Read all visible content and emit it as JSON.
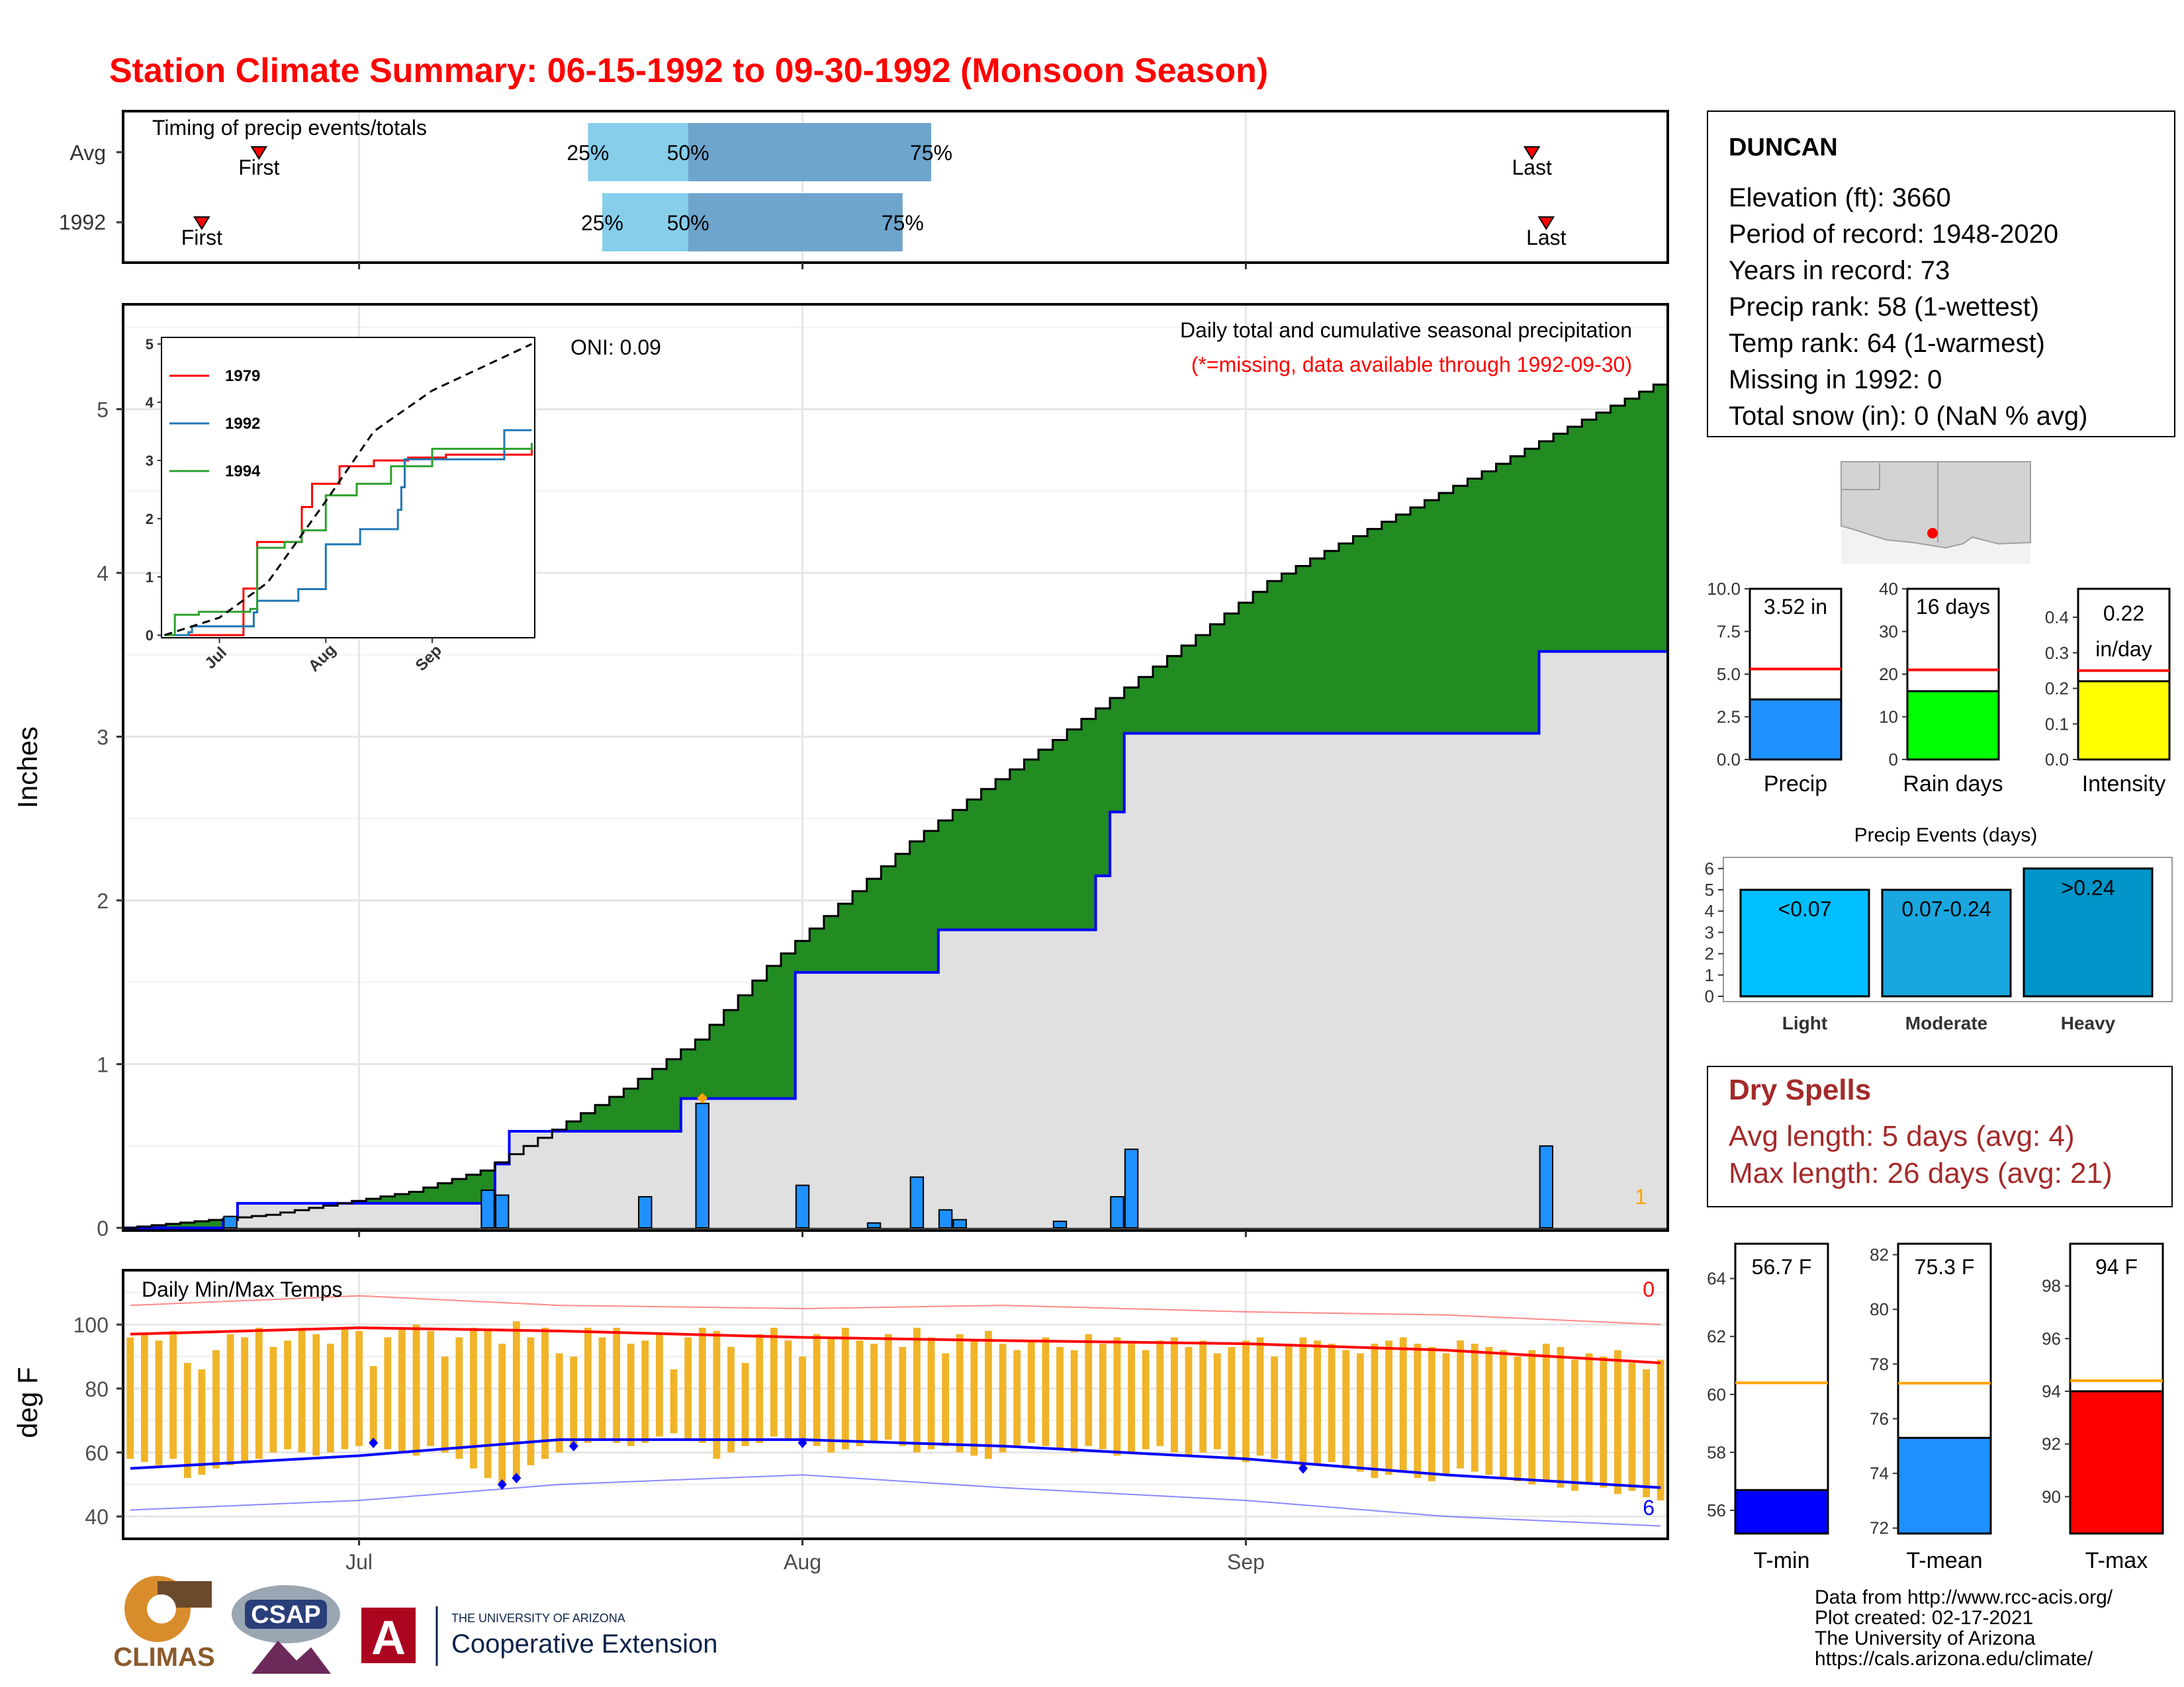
{
  "title": "Station Climate Summary: 06-15-1992 to 09-30-1992 (Monsoon Season)",
  "colors": {
    "title": "#ff0000",
    "q_light": "#87ceeb",
    "q_dark": "#6ea5cd",
    "cum_avg_fill": "#8b5a00",
    "cum_year_fill": "#e0e0e0",
    "cum_year_line": "#0000ff",
    "daily_bar": "#1e90ff",
    "temp_bar": "#f0b428",
    "tmax_avg": "#ff0000",
    "tmin_avg": "#0000ff",
    "dry_spell_text": "#a52a2a",
    "precip_bar": "#1e90ff",
    "raindays_bar": "#00ff00",
    "intensity_bar": "#ffff00",
    "tmin_bar": "#0000ff",
    "tmean_bar": "#1e90ff",
    "tmax_bar": "#ff0000",
    "avg_line_red": "#ff0000",
    "avg_line_orange": "#ffa500"
  },
  "timing": {
    "label": "Timing of precip events/totals",
    "rows": [
      {
        "label": "Avg",
        "first": "06-24",
        "last": "09-21",
        "q25": "07-17",
        "q50": "07-24",
        "q75": "08-10"
      },
      {
        "label": "1992",
        "first": "06-20",
        "last": "09-22",
        "q25": "07-18",
        "q50": "07-24",
        "q75": "08-08"
      }
    ],
    "first_text": "First",
    "last_text": "Last",
    "q25_text": "25%",
    "q50_text": "50%",
    "q75_text": "75%"
  },
  "precip_panel": {
    "ylabel": "Inches",
    "yticks": [
      "0",
      "1",
      "2",
      "3",
      "4",
      "5"
    ],
    "xticks": [
      "Jul",
      "Aug",
      "Sep"
    ],
    "oni": "ONI: 0.09",
    "annot1": "Daily total and cumulative seasonal precipitation",
    "annot2": "(*=missing, data available through 1992-09-30)",
    "corner_count": "1"
  },
  "inset": {
    "yticks": [
      "0",
      "1",
      "2",
      "3",
      "4",
      "5"
    ],
    "xticks": [
      "Jul",
      "Aug",
      "Sep"
    ],
    "legend": [
      {
        "name": "1979",
        "color": "#ff0000"
      },
      {
        "name": "1992",
        "color": "#1f77b4"
      },
      {
        "name": "1994",
        "color": "#2ca02c"
      }
    ]
  },
  "temp_panel": {
    "ylabel": "deg F",
    "label": "Daily Min/Max Temps",
    "yticks": [
      "40",
      "60",
      "80",
      "100"
    ],
    "xticks": [
      "Jul",
      "Aug",
      "Sep"
    ],
    "count_red": "0",
    "count_blue": "6"
  },
  "station": {
    "name": "DUNCAN",
    "lines": [
      "Elevation (ft): 3660",
      "Period of record: 1948-2020",
      "Years in record: 73",
      "Precip rank: 58 (1-wettest)",
      "Temp rank: 64 (1-warmest)",
      "Missing in 1992: 0",
      "Total snow (in): 0 (NaN % avg)"
    ]
  },
  "mini_bars": {
    "precip": {
      "label": "Precip",
      "value_text": "3.52 in",
      "value": 3.52,
      "avg": 5.3,
      "ticks": [
        "0.0",
        "2.5",
        "5.0",
        "7.5",
        "10.0"
      ],
      "max": 10
    },
    "raindays": {
      "label": "Rain days",
      "value_text": "16 days",
      "value": 16,
      "avg": 21,
      "ticks": [
        "0",
        "10",
        "20",
        "30",
        "40"
      ],
      "max": 40
    },
    "intensity": {
      "label": "Intensity",
      "value_text1": "0.22",
      "value_text2": "in/day",
      "value": 0.22,
      "avg": 0.25,
      "ticks": [
        "0.0",
        "0.1",
        "0.2",
        "0.3",
        "0.4"
      ],
      "max": 0.48
    }
  },
  "events": {
    "title": "Precip Events (days)",
    "yticks": [
      "0",
      "1",
      "2",
      "3",
      "4",
      "5",
      "6"
    ],
    "bars": [
      {
        "category": "Light",
        "label": "<0.07",
        "value": 5
      },
      {
        "category": "Moderate",
        "label": "0.07-0.24",
        "value": 5
      },
      {
        "category": "Heavy",
        "label": ">0.24",
        "value": 6
      }
    ]
  },
  "dry_spells": {
    "title": "Dry Spells",
    "line1": "Avg length: 5 days (avg: 4)",
    "line2": "Max length: 26 days (avg: 21)"
  },
  "temp_bars": {
    "tmin": {
      "label": "T-min",
      "value_text": "56.7 F",
      "value": 56.7,
      "avg": 60.4,
      "ticks": [
        "56",
        "58",
        "60",
        "62",
        "64"
      ],
      "min": 55.2,
      "max": 65.2
    },
    "tmean": {
      "label": "T-mean",
      "value_text": "75.3 F",
      "value": 75.3,
      "avg": 77.3,
      "ticks": [
        "72",
        "74",
        "76",
        "78",
        "80",
        "82"
      ],
      "min": 71.8,
      "max": 82.4
    },
    "tmax": {
      "label": "T-max",
      "value_text": "94 F",
      "value": 94.0,
      "avg": 94.4,
      "ticks": [
        "90",
        "92",
        "94",
        "96",
        "98"
      ],
      "min": 88.6,
      "max": 99.6
    }
  },
  "credits": [
    "Data from http://www.rcc-acis.org/",
    "Plot created: 02-17-2021",
    "The University of Arizona",
    "https://cals.arizona.edu/climate/"
  ],
  "logos": {
    "climas": "CLIMAS",
    "csap": "CSAP",
    "ua_small": "THE UNIVERSITY OF ARIZONA",
    "ua_big": "Cooperative Extension"
  },
  "chart_data": [
    {
      "type": "area",
      "title": "Daily total and cumulative seasonal precipitation",
      "ylabel": "Inches",
      "ylim": [
        0,
        5.6
      ],
      "x_range": [
        "1992-06-15",
        "1992-09-30"
      ],
      "series": [
        {
          "name": "Avg",
          "x": [
            "06-15",
            "06-20",
            "06-25",
            "06-30",
            "07-05",
            "07-10",
            "07-15",
            "07-20",
            "07-25",
            "07-30",
            "08-04",
            "08-09",
            "08-14",
            "08-19",
            "08-24",
            "08-29",
            "09-03",
            "09-08",
            "09-13",
            "09-18",
            "09-23",
            "09-30"
          ],
          "values": [
            0.0,
            0.04,
            0.08,
            0.15,
            0.22,
            0.35,
            0.6,
            0.85,
            1.15,
            1.6,
            1.98,
            2.36,
            2.68,
            2.98,
            3.3,
            3.62,
            3.95,
            4.18,
            4.4,
            4.62,
            4.85,
            5.15
          ]
        },
        {
          "name": "1992",
          "x": [
            "06-15",
            "06-22",
            "06-23",
            "07-10",
            "07-11",
            "07-12",
            "07-22",
            "07-24",
            "08-01",
            "08-08",
            "08-11",
            "08-22",
            "08-23",
            "08-24",
            "09-22",
            "09-30"
          ],
          "values": [
            0.0,
            0.05,
            0.15,
            0.15,
            0.39,
            0.59,
            0.59,
            0.79,
            1.56,
            1.56,
            1.82,
            2.15,
            2.54,
            3.02,
            3.52,
            3.52
          ]
        }
      ],
      "daily_precip": [
        {
          "date": "06-22",
          "value": 0.07
        },
        {
          "date": "07-10",
          "value": 0.23
        },
        {
          "date": "07-11",
          "value": 0.2
        },
        {
          "date": "07-21",
          "value": 0.19
        },
        {
          "date": "07-25",
          "value": 0.76
        },
        {
          "date": "08-01",
          "value": 0.26
        },
        {
          "date": "08-06",
          "value": 0.03
        },
        {
          "date": "08-09",
          "value": 0.31
        },
        {
          "date": "08-11",
          "value": 0.11
        },
        {
          "date": "08-12",
          "value": 0.05
        },
        {
          "date": "08-19",
          "value": 0.04
        },
        {
          "date": "08-23",
          "value": 0.19
        },
        {
          "date": "08-24",
          "value": 0.48
        },
        {
          "date": "09-22",
          "value": 0.5
        }
      ]
    },
    {
      "type": "line",
      "title": "",
      "xticks": [
        "Jul",
        "Aug",
        "Sep"
      ],
      "ylim": [
        0,
        5.2
      ],
      "series": [
        {
          "name": "1979",
          "x": [
            "06-15",
            "07-05",
            "07-08",
            "07-12",
            "07-15",
            "07-25",
            "07-28",
            "08-05",
            "08-15",
            "08-25",
            "09-05",
            "09-30"
          ],
          "values": [
            0,
            0,
            0.8,
            1.6,
            1.6,
            2.2,
            2.6,
            2.9,
            3.0,
            3.05,
            3.1,
            3.2
          ]
        },
        {
          "name": "1992",
          "x": [
            "06-15",
            "06-22",
            "06-23",
            "07-10",
            "07-11",
            "07-12",
            "07-22",
            "07-24",
            "08-01",
            "08-08",
            "08-11",
            "08-22",
            "08-23",
            "08-24",
            "09-22",
            "09-30"
          ],
          "values": [
            0.0,
            0.05,
            0.15,
            0.15,
            0.39,
            0.59,
            0.59,
            0.79,
            1.56,
            1.56,
            1.82,
            2.15,
            2.54,
            3.02,
            3.52,
            3.52
          ]
        },
        {
          "name": "1994",
          "x": [
            "06-15",
            "06-18",
            "06-25",
            "07-10",
            "07-12",
            "07-20",
            "07-25",
            "08-01",
            "08-10",
            "08-20",
            "09-01",
            "09-30"
          ],
          "values": [
            0,
            0.35,
            0.4,
            0.45,
            1.5,
            1.6,
            1.8,
            2.4,
            2.6,
            2.9,
            3.2,
            3.3
          ]
        },
        {
          "name": "Avg",
          "x": [
            "06-15",
            "07-01",
            "07-15",
            "08-01",
            "08-15",
            "09-01",
            "09-30"
          ],
          "values": [
            0,
            0.3,
            0.9,
            2.3,
            3.5,
            4.2,
            5.0
          ]
        }
      ]
    },
    {
      "type": "line",
      "title": "Daily Min/Max Temps",
      "ylabel": "deg F",
      "ylim": [
        33,
        117
      ],
      "x_range": [
        "1992-06-15",
        "1992-09-30"
      ],
      "series": [
        {
          "name": "Avg max",
          "x": [
            "06-15",
            "07-01",
            "07-15",
            "08-01",
            "08-15",
            "09-01",
            "09-15",
            "09-30"
          ],
          "values": [
            97,
            99,
            98,
            96,
            95,
            94,
            92,
            88
          ]
        },
        {
          "name": "Avg min",
          "x": [
            "06-15",
            "07-01",
            "07-15",
            "08-01",
            "08-15",
            "09-01",
            "09-15",
            "09-30"
          ],
          "values": [
            55,
            59,
            64,
            64,
            62,
            58,
            53,
            49
          ]
        },
        {
          "name": "Record max",
          "x": [
            "06-15",
            "07-01",
            "07-15",
            "08-01",
            "08-15",
            "09-01",
            "09-15",
            "09-30"
          ],
          "values": [
            106,
            109,
            106,
            105,
            106,
            104,
            103,
            100
          ]
        },
        {
          "name": "Record min",
          "x": [
            "06-15",
            "07-01",
            "07-15",
            "08-01",
            "08-15",
            "09-01",
            "09-15",
            "09-30"
          ],
          "values": [
            42,
            45,
            50,
            53,
            49,
            45,
            40,
            37
          ]
        }
      ],
      "daily_range_note": "1992 daily max/min shown as bars",
      "daily_max": [
        96,
        97,
        95,
        98,
        88,
        86,
        92,
        97,
        96,
        99,
        93,
        95,
        99,
        97,
        94,
        99,
        98,
        87,
        96,
        99,
        100,
        98,
        90,
        96,
        99,
        98,
        94,
        101,
        96,
        99,
        91,
        90,
        99,
        96,
        99,
        94,
        95,
        97,
        86,
        96,
        99,
        98,
        93,
        88,
        97,
        99,
        95,
        90,
        97,
        96,
        99,
        95,
        94,
        97,
        93,
        99,
        96,
        91,
        97,
        95,
        98,
        94,
        92,
        95,
        96,
        93,
        92,
        97,
        94,
        96,
        94,
        92,
        95,
        96,
        93,
        95,
        91,
        93,
        95,
        96,
        90,
        94,
        96,
        95,
        94,
        92,
        91,
        94,
        95,
        96,
        94,
        93,
        91,
        95,
        94,
        93,
        92,
        90,
        92,
        94,
        93,
        89,
        91,
        90,
        92,
        88,
        86,
        89
      ],
      "daily_min": [
        58,
        57,
        56,
        58,
        52,
        53,
        55,
        56,
        57,
        58,
        60,
        61,
        60,
        59,
        60,
        61,
        62,
        63,
        61,
        60,
        59,
        62,
        60,
        58,
        55,
        52,
        50,
        52,
        56,
        58,
        60,
        62,
        63,
        64,
        63,
        62,
        63,
        65,
        66,
        64,
        63,
        58,
        60,
        62,
        63,
        65,
        64,
        63,
        62,
        60,
        61,
        62,
        63,
        64,
        62,
        60,
        61,
        62,
        60,
        59,
        58,
        60,
        62,
        63,
        62,
        61,
        60,
        62,
        61,
        59,
        60,
        61,
        62,
        60,
        59,
        60,
        61,
        58,
        57,
        59,
        58,
        57,
        55,
        56,
        57,
        55,
        54,
        52,
        53,
        54,
        52,
        51,
        53,
        55,
        54,
        53,
        52,
        51,
        50,
        51,
        49,
        48,
        50,
        49,
        47,
        48,
        46,
        45
      ]
    },
    {
      "type": "bar",
      "title": "",
      "categories": [
        "Precip",
        "Rain days",
        "Intensity"
      ],
      "values": [
        3.52,
        16,
        0.22
      ],
      "avg": [
        5.3,
        21,
        0.25
      ]
    },
    {
      "type": "bar",
      "title": "Precip Events (days)",
      "categories": [
        "Light",
        "Moderate",
        "Heavy"
      ],
      "values": [
        5,
        5,
        6
      ],
      "ylim": [
        0,
        6.5
      ]
    },
    {
      "type": "bar",
      "title": "",
      "categories": [
        "T-min",
        "T-mean",
        "T-max"
      ],
      "values": [
        56.7,
        75.3,
        94.0
      ],
      "avg": [
        60.4,
        77.3,
        94.4
      ]
    }
  ]
}
